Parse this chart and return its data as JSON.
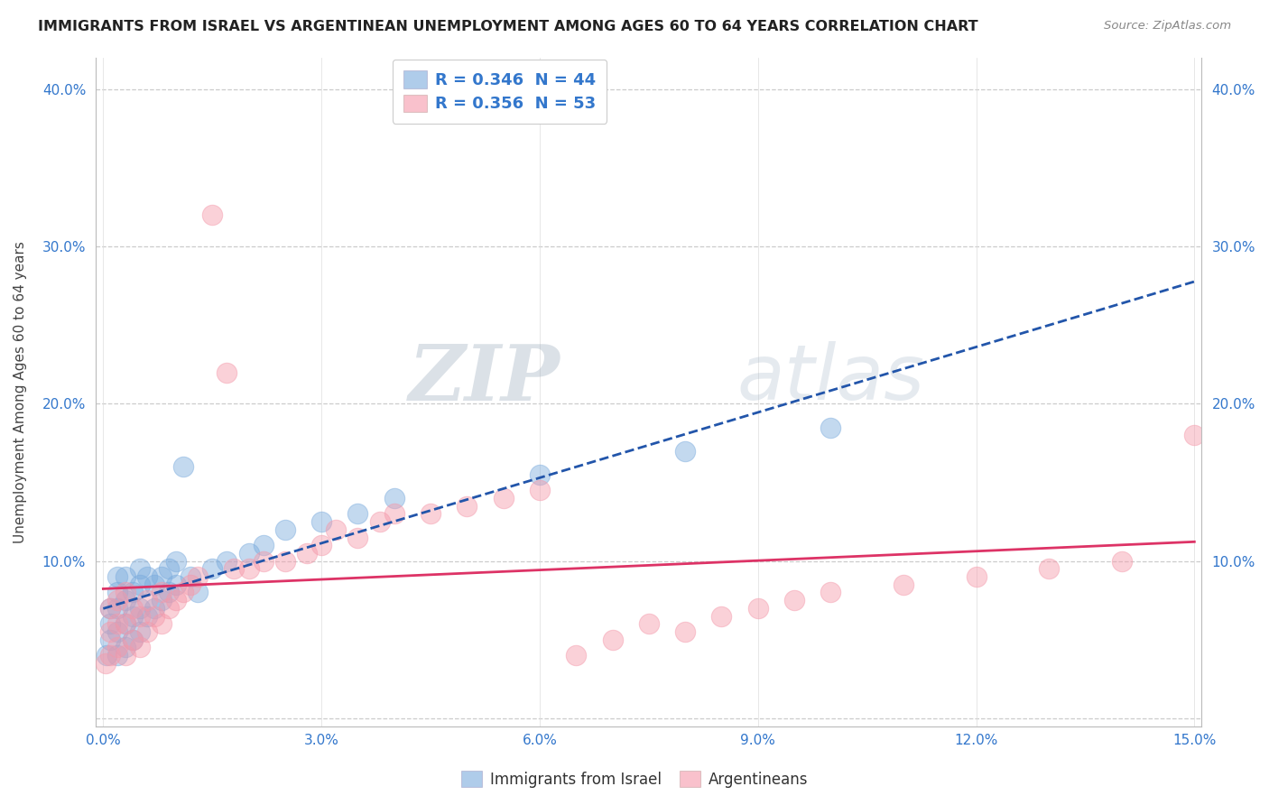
{
  "title": "IMMIGRANTS FROM ISRAEL VS ARGENTINEAN UNEMPLOYMENT AMONG AGES 60 TO 64 YEARS CORRELATION CHART",
  "source": "Source: ZipAtlas.com",
  "ylabel": "Unemployment Among Ages 60 to 64 years",
  "xlim": [
    -0.001,
    0.151
  ],
  "ylim": [
    -0.005,
    0.42
  ],
  "xticks": [
    0.0,
    0.03,
    0.06,
    0.09,
    0.12,
    0.15
  ],
  "xtick_labels": [
    "0.0%",
    "3.0%",
    "6.0%",
    "9.0%",
    "12.0%",
    "15.0%"
  ],
  "yticks": [
    0.0,
    0.1,
    0.2,
    0.3,
    0.4
  ],
  "ytick_labels": [
    "",
    "10.0%",
    "20.0%",
    "30.0%",
    "40.0%"
  ],
  "legend_r1": "R = 0.346  N = 44",
  "legend_r2": "R = 0.356  N = 53",
  "series1_label": "Immigrants from Israel",
  "series2_label": "Argentineans",
  "color1": "#7aabdd",
  "color2": "#f599aa",
  "trendline1_color": "#2255aa",
  "trendline2_color": "#dd3366",
  "watermark_zip": "ZIP",
  "watermark_atlas": "atlas",
  "title_fontsize": 11.5,
  "axis_label_fontsize": 11,
  "tick_fontsize": 11,
  "blue_x": [
    0.0005,
    0.001,
    0.001,
    0.001,
    0.002,
    0.002,
    0.002,
    0.002,
    0.002,
    0.003,
    0.003,
    0.003,
    0.003,
    0.004,
    0.004,
    0.004,
    0.005,
    0.005,
    0.005,
    0.005,
    0.006,
    0.006,
    0.007,
    0.007,
    0.008,
    0.008,
    0.009,
    0.009,
    0.01,
    0.01,
    0.011,
    0.012,
    0.013,
    0.015,
    0.017,
    0.02,
    0.022,
    0.025,
    0.03,
    0.035,
    0.04,
    0.06,
    0.08,
    0.1
  ],
  "blue_y": [
    0.04,
    0.05,
    0.06,
    0.07,
    0.04,
    0.055,
    0.07,
    0.08,
    0.09,
    0.045,
    0.06,
    0.075,
    0.09,
    0.05,
    0.065,
    0.08,
    0.055,
    0.07,
    0.085,
    0.095,
    0.065,
    0.09,
    0.07,
    0.085,
    0.075,
    0.09,
    0.08,
    0.095,
    0.085,
    0.1,
    0.16,
    0.09,
    0.08,
    0.095,
    0.1,
    0.105,
    0.11,
    0.12,
    0.125,
    0.13,
    0.14,
    0.155,
    0.17,
    0.185
  ],
  "pink_x": [
    0.0003,
    0.001,
    0.001,
    0.001,
    0.002,
    0.002,
    0.002,
    0.003,
    0.003,
    0.003,
    0.004,
    0.004,
    0.005,
    0.005,
    0.006,
    0.006,
    0.007,
    0.008,
    0.008,
    0.009,
    0.01,
    0.011,
    0.012,
    0.013,
    0.015,
    0.017,
    0.018,
    0.02,
    0.022,
    0.025,
    0.028,
    0.03,
    0.032,
    0.035,
    0.038,
    0.04,
    0.045,
    0.05,
    0.055,
    0.06,
    0.065,
    0.07,
    0.075,
    0.08,
    0.085,
    0.09,
    0.095,
    0.1,
    0.11,
    0.12,
    0.13,
    0.14,
    0.15
  ],
  "pink_y": [
    0.035,
    0.04,
    0.055,
    0.07,
    0.045,
    0.06,
    0.075,
    0.04,
    0.06,
    0.08,
    0.05,
    0.07,
    0.045,
    0.065,
    0.055,
    0.075,
    0.065,
    0.06,
    0.08,
    0.07,
    0.075,
    0.08,
    0.085,
    0.09,
    0.32,
    0.22,
    0.095,
    0.095,
    0.1,
    0.1,
    0.105,
    0.11,
    0.12,
    0.115,
    0.125,
    0.13,
    0.13,
    0.135,
    0.14,
    0.145,
    0.04,
    0.05,
    0.06,
    0.055,
    0.065,
    0.07,
    0.075,
    0.08,
    0.085,
    0.09,
    0.095,
    0.1,
    0.18
  ]
}
